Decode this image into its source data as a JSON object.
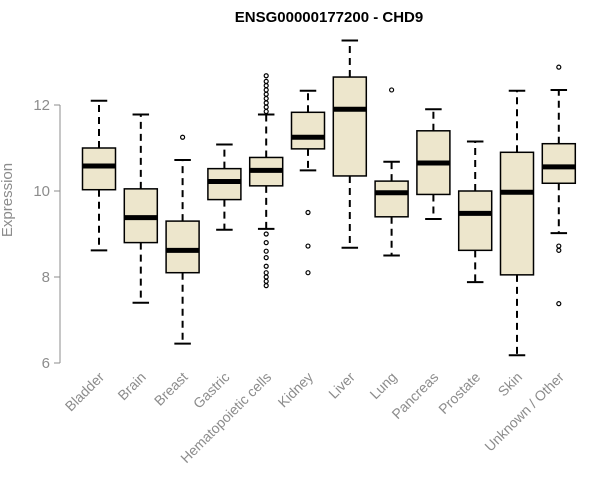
{
  "chart_data": {
    "type": "boxplot",
    "title": "ENSG00000177200 - CHD9",
    "ylabel": "Expression",
    "xlabel": "",
    "ylim": [
      6,
      13.6
    ],
    "yticks": [
      6,
      8,
      10,
      12
    ],
    "grid": false,
    "box_fill": "#ede6cc",
    "stroke_color": "#000000",
    "categories": [
      "Bladder",
      "Brain",
      "Breast",
      "Gastric",
      "Hematopoietic cells",
      "Kidney",
      "Liver",
      "Lung",
      "Pancreas",
      "Prostate",
      "Skin",
      "Unknown / Other"
    ],
    "series": [
      {
        "category": "Bladder",
        "whisker_low": 8.62,
        "q1": 10.03,
        "median": 10.58,
        "q3": 11.0,
        "whisker_high": 12.1,
        "outliers": []
      },
      {
        "category": "Brain",
        "whisker_low": 7.4,
        "q1": 8.8,
        "median": 9.38,
        "q3": 10.05,
        "whisker_high": 11.78,
        "outliers": []
      },
      {
        "category": "Breast",
        "whisker_low": 6.45,
        "q1": 8.1,
        "median": 8.62,
        "q3": 9.3,
        "whisker_high": 10.72,
        "outliers": [
          11.25
        ]
      },
      {
        "category": "Gastric",
        "whisker_low": 9.1,
        "q1": 9.8,
        "median": 10.22,
        "q3": 10.52,
        "whisker_high": 11.08,
        "outliers": []
      },
      {
        "category": "Hematopoietic cells",
        "whisker_low": 9.12,
        "q1": 10.12,
        "median": 10.48,
        "q3": 10.78,
        "whisker_high": 11.78,
        "outliers": [
          7.8,
          7.9,
          8.0,
          8.1,
          8.25,
          8.45,
          8.6,
          8.8,
          9.0,
          11.85,
          11.95,
          12.05,
          12.15,
          12.25,
          12.35,
          12.45,
          12.55,
          12.68
        ]
      },
      {
        "category": "Kidney",
        "whisker_low": 10.48,
        "q1": 10.98,
        "median": 11.25,
        "q3": 11.83,
        "whisker_high": 12.33,
        "outliers": [
          9.5,
          8.72,
          8.1
        ]
      },
      {
        "category": "Liver",
        "whisker_low": 8.68,
        "q1": 10.35,
        "median": 11.9,
        "q3": 12.65,
        "whisker_high": 13.5,
        "outliers": []
      },
      {
        "category": "Lung",
        "whisker_low": 8.5,
        "q1": 9.4,
        "median": 9.96,
        "q3": 10.23,
        "whisker_high": 10.68,
        "outliers": [
          12.35
        ]
      },
      {
        "category": "Pancreas",
        "whisker_low": 9.35,
        "q1": 9.92,
        "median": 10.65,
        "q3": 11.4,
        "whisker_high": 11.9,
        "outliers": []
      },
      {
        "category": "Prostate",
        "whisker_low": 7.88,
        "q1": 8.62,
        "median": 9.48,
        "q3": 10.0,
        "whisker_high": 11.15,
        "outliers": []
      },
      {
        "category": "Skin",
        "whisker_low": 6.18,
        "q1": 8.05,
        "median": 9.97,
        "q3": 10.9,
        "whisker_high": 12.33,
        "outliers": []
      },
      {
        "category": "Unknown / Other",
        "whisker_low": 9.02,
        "q1": 10.18,
        "median": 10.56,
        "q3": 11.1,
        "whisker_high": 12.35,
        "outliers": [
          12.88,
          8.72,
          8.62,
          7.38
        ]
      }
    ]
  }
}
